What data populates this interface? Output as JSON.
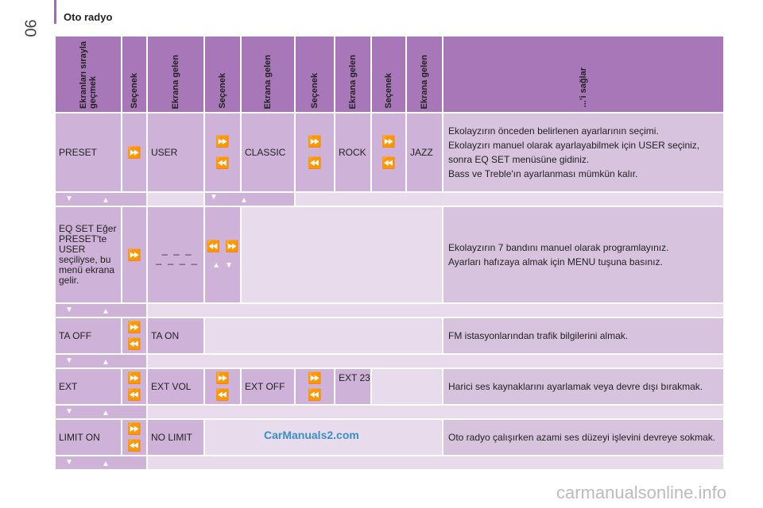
{
  "page": {
    "number": "90",
    "section_title": "Oto radyo"
  },
  "headers": [
    "Ekranları sırayla geçmek",
    "Seçenek",
    "Ekrana gelen",
    "Seçenek",
    "Ekrana gelen",
    "Seçenek",
    "Ekrana gelen",
    "Seçenek",
    "Ekrana gelen",
    "...'i sağlar"
  ],
  "rows": {
    "preset": {
      "label": "PRESET",
      "v1": "USER",
      "v2": "CLASSIC",
      "v3": "ROCK",
      "v4": "JAZZ",
      "desc": [
        "Ekolayzırın önceden belirlenen ayarlarının seçimi.",
        "Ekolayzırı manuel olarak ayarlayabilmek için USER seçiniz, sonra EQ SET menüsüne gidiniz.",
        "Bass ve Treble'ın ayarlanması mümkün kalır."
      ]
    },
    "eqset": {
      "label": "EQ SET Eğer PRESET'te USER seçiliyse, bu menü ekrana gelir.",
      "v1": "_ _ _",
      "v1b": "_ _ _ _",
      "desc": [
        "Ekolayzırın 7 bandını manuel olarak programlayınız.",
        "Ayarları hafızaya almak için MENU tuşuna basınız."
      ]
    },
    "ta": {
      "label": "TA OFF",
      "v1": "TA ON",
      "desc": "FM istasyonlarından trafik bilgilerini almak."
    },
    "ext": {
      "label": "EXT",
      "v1": "EXT VOL",
      "v2": "EXT OFF",
      "v3": "EXT 23",
      "desc": "Harici ses kaynaklarını ayarlamak veya devre dışı bırakmak."
    },
    "limit": {
      "label": "LIMIT ON",
      "v1": "NO LIMIT",
      "desc": "Oto radyo çalışırken azami ses düzeyi işlevini devreye sokmak."
    }
  },
  "icons": {
    "next": "fast-forward-icon",
    "prev": "rewind-icon",
    "down": "down-triangle-icon",
    "up": "up-triangle-icon"
  },
  "watermarks": {
    "center": "CarManuals2.com",
    "footer": "carmanualsonline.info"
  },
  "colors": {
    "header": "#a877b8",
    "cell": "#cfb2d8",
    "light": "#e8dbeb"
  }
}
